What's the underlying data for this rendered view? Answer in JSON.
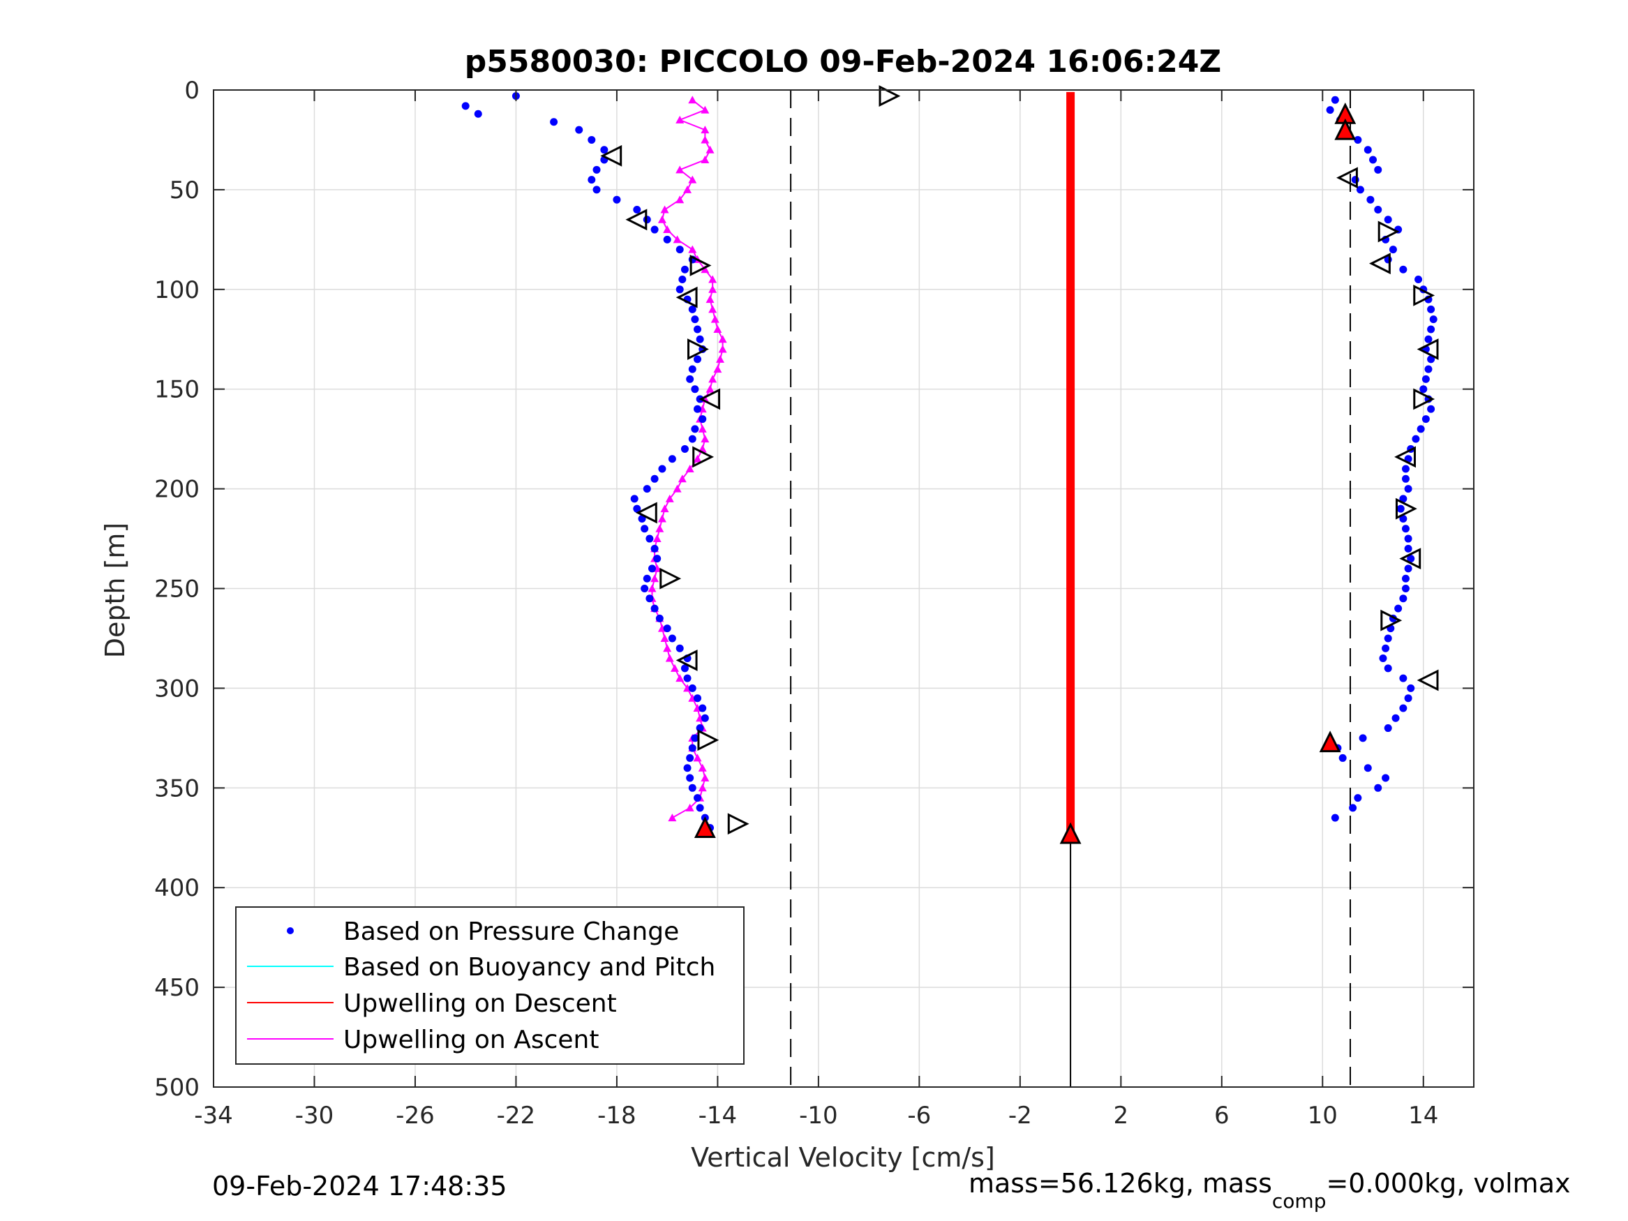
{
  "chart_data": {
    "type": "scatter",
    "title": "p5580030: PICCOLO 09-Feb-2024 16:06:24Z",
    "xlabel": "Vertical Velocity [cm/s]",
    "ylabel": "Depth [m]",
    "xlim": [
      -34,
      16
    ],
    "ylim": [
      500,
      0
    ],
    "y_reversed": true,
    "x_ticks": [
      -34,
      -30,
      -26,
      -22,
      -18,
      -14,
      -10,
      -6,
      -2,
      2,
      6,
      10,
      14
    ],
    "y_ticks": [
      0,
      50,
      100,
      150,
      200,
      250,
      300,
      350,
      400,
      450,
      500
    ],
    "grid": true,
    "legend": {
      "placement": "bottom-left",
      "entries": [
        {
          "label": "Based on Pressure Change",
          "color": "#0000ff",
          "marker": "dot"
        },
        {
          "label": "Based on Buoyancy and Pitch",
          "color": "#00ffff",
          "marker": "line"
        },
        {
          "label": "Upwelling on Descent",
          "color": "#ff0000",
          "marker": "line"
        },
        {
          "label": "Upwelling on Ascent",
          "color": "#ff00ff",
          "marker": "line"
        }
      ]
    },
    "reference_lines": {
      "dashed_x": [
        -11.1,
        11.1
      ],
      "solid_x": [
        0
      ],
      "solid_from_depth": 372
    },
    "series": [
      {
        "name": "Based on Pressure Change",
        "color": "#0000ff",
        "ascent": {
          "depth": [
            3,
            8,
            12,
            16,
            20,
            25,
            30,
            35,
            40,
            45,
            50,
            55,
            60,
            65,
            70,
            75,
            80,
            85,
            90,
            95,
            100,
            105,
            110,
            115,
            120,
            125,
            130,
            135,
            140,
            145,
            150,
            155,
            160,
            165,
            170,
            175,
            180,
            185,
            190,
            195,
            200,
            205,
            210,
            215,
            220,
            225,
            230,
            235,
            240,
            245,
            250,
            255,
            260,
            265,
            270,
            275,
            280,
            285,
            290,
            295,
            300,
            305,
            310,
            315,
            320,
            325,
            330,
            335,
            340,
            345,
            350,
            355,
            360,
            365,
            370
          ],
          "velocity": [
            -22,
            -24,
            -23.5,
            -20.5,
            -19.5,
            -19,
            -18.5,
            -18.5,
            -18.8,
            -19,
            -18.8,
            -18,
            -17.2,
            -16.8,
            -16.5,
            -16,
            -15.5,
            -15,
            -15.3,
            -15.4,
            -15.5,
            -15.2,
            -15,
            -14.9,
            -14.8,
            -14.7,
            -14.6,
            -14.8,
            -15,
            -15.1,
            -14.9,
            -14.7,
            -14.8,
            -14.6,
            -14.9,
            -15,
            -15.3,
            -15.8,
            -16.2,
            -16.5,
            -16.8,
            -17.3,
            -17.2,
            -17,
            -16.9,
            -16.7,
            -16.5,
            -16.4,
            -16.6,
            -16.8,
            -16.9,
            -16.7,
            -16.5,
            -16.3,
            -16,
            -15.8,
            -15.5,
            -15.2,
            -15.3,
            -15.2,
            -15,
            -14.8,
            -14.6,
            -14.5,
            -14.7,
            -14.9,
            -15,
            -15.1,
            -15.2,
            -15.1,
            -15,
            -14.8,
            -14.7,
            -14.5,
            -14.3
          ]
        },
        "descent": {
          "depth": [
            5,
            10,
            15,
            20,
            25,
            30,
            35,
            40,
            45,
            50,
            55,
            60,
            65,
            70,
            75,
            80,
            85,
            90,
            95,
            100,
            105,
            110,
            115,
            120,
            125,
            130,
            135,
            140,
            145,
            150,
            155,
            160,
            165,
            170,
            175,
            180,
            185,
            190,
            195,
            200,
            205,
            210,
            215,
            220,
            225,
            230,
            235,
            240,
            245,
            250,
            255,
            260,
            265,
            270,
            275,
            280,
            285,
            290,
            295,
            300,
            305,
            310,
            315,
            320,
            325,
            330,
            335,
            340,
            345,
            350,
            355,
            360,
            365
          ],
          "velocity": [
            10.5,
            10.3,
            10.7,
            10.9,
            11.4,
            11.8,
            12,
            12.2,
            11.3,
            11.5,
            11.9,
            12.2,
            12.6,
            13,
            12.5,
            12.8,
            12.6,
            13.2,
            13.8,
            14,
            14.2,
            14.3,
            14.4,
            14.3,
            14.2,
            14.1,
            14.3,
            14.2,
            14.1,
            14.0,
            14.2,
            14.3,
            14.1,
            13.9,
            13.7,
            13.5,
            13.4,
            13.3,
            13.3,
            13.4,
            13.2,
            13.1,
            13.2,
            13.3,
            13.4,
            13.4,
            13.5,
            13.4,
            13.3,
            13.3,
            13.2,
            13.0,
            12.8,
            12.7,
            12.6,
            12.5,
            12.4,
            12.6,
            13.2,
            13.5,
            13.4,
            13.2,
            12.9,
            12.6,
            11.6,
            10.6,
            10.8,
            11.8,
            12.5,
            12.2,
            11.4,
            11.2,
            10.5
          ]
        }
      },
      {
        "name": "Upwelling on Descent",
        "color": "#ff0000",
        "depth_range": [
          1,
          372
        ],
        "velocity": 0
      },
      {
        "name": "Upwelling on Ascent",
        "color": "#ff00ff",
        "depth": [
          5,
          10,
          15,
          20,
          25,
          30,
          35,
          40,
          45,
          50,
          55,
          60,
          65,
          70,
          75,
          80,
          85,
          90,
          95,
          100,
          105,
          110,
          115,
          120,
          125,
          130,
          135,
          140,
          145,
          150,
          155,
          160,
          165,
          170,
          175,
          180,
          185,
          190,
          195,
          200,
          205,
          210,
          215,
          220,
          225,
          230,
          235,
          240,
          245,
          250,
          255,
          260,
          265,
          270,
          275,
          280,
          285,
          290,
          295,
          300,
          305,
          310,
          315,
          320,
          325,
          330,
          335,
          340,
          345,
          350,
          355,
          360,
          365
        ],
        "velocity": [
          -15,
          -14.5,
          -15.5,
          -14.5,
          -14.5,
          -14.3,
          -14.5,
          -15.5,
          -15,
          -15.2,
          -15.5,
          -16.1,
          -16.2,
          -16,
          -15.6,
          -15,
          -14.8,
          -14.5,
          -14.2,
          -14.2,
          -14.3,
          -14.2,
          -14.1,
          -14.0,
          -13.8,
          -13.8,
          -13.9,
          -14,
          -14.2,
          -14.3,
          -14.5,
          -14.6,
          -14.7,
          -14.6,
          -14.5,
          -14.6,
          -14.8,
          -15.1,
          -15.4,
          -15.6,
          -15.9,
          -16.1,
          -16.2,
          -16.3,
          -16.4,
          -16.5,
          -16.5,
          -16.4,
          -16.5,
          -16.6,
          -16.6,
          -16.5,
          -16.3,
          -16.2,
          -16.1,
          -16.0,
          -15.9,
          -15.7,
          -15.5,
          -15.2,
          -15.0,
          -14.8,
          -14.7,
          -14.6,
          -15.0,
          -15.0,
          -14.8,
          -14.6,
          -14.5,
          -14.6,
          -14.7,
          -15.1,
          -15.8
        ]
      }
    ],
    "triangle_markers": {
      "ascent": {
        "depth": [
          3,
          33,
          65,
          88,
          104,
          130,
          155,
          184,
          212,
          245,
          286,
          326,
          368
        ],
        "velocity": [
          -7.2,
          -18.2,
          -17.2,
          -14.7,
          -15.2,
          -14.8,
          -14.3,
          -14.6,
          -16.8,
          -15.9,
          -15.2,
          -14.4,
          -13.2
        ],
        "direction": [
          "right",
          "left",
          "left",
          "right",
          "left",
          "right",
          "left",
          "right",
          "left",
          "right",
          "left",
          "right",
          "right"
        ]
      },
      "descent": {
        "depth": [
          44,
          71,
          87,
          103,
          130,
          155,
          184,
          210,
          235,
          266,
          296
        ],
        "velocity": [
          11.0,
          12.6,
          12.3,
          14.0,
          14.2,
          14.0,
          13.3,
          13.3,
          13.5,
          12.7,
          14.2
        ],
        "direction": [
          "left",
          "right",
          "left",
          "right",
          "left",
          "right",
          "left",
          "right",
          "left",
          "right",
          "left"
        ]
      },
      "red_filled": {
        "depth": [
          12,
          20,
          327,
          370,
          373
        ],
        "velocity": [
          10.9,
          10.9,
          10.3,
          -14.5,
          0
        ]
      }
    }
  },
  "footer": {
    "timestamp": "09-Feb-2024 17:48:35",
    "mass_text": "mass=56.126kg, mass",
    "mass_sub": "comp",
    "mass_rest": "=0.000kg, volmax"
  }
}
